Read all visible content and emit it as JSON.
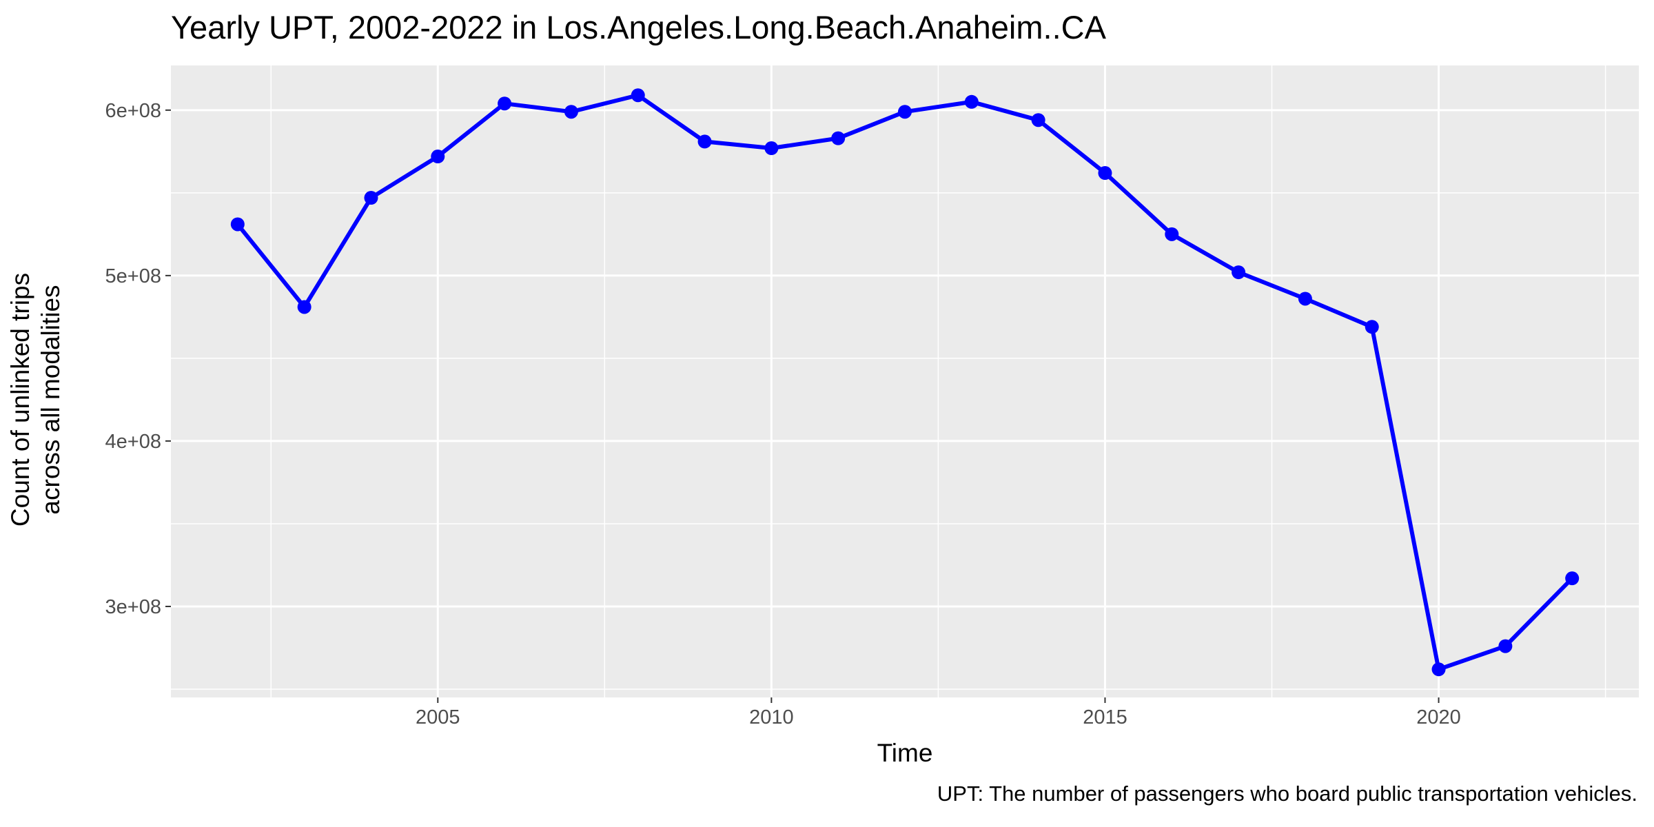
{
  "chart_data": {
    "type": "line",
    "title": "Yearly UPT, 2002-2022 in Los.Angeles.Long.Beach.Anaheim..CA",
    "xlabel": "Time",
    "ylabel_lines": [
      "Count of unlinked trips",
      "across all modalities"
    ],
    "caption": "UPT: The number of passengers who board public transportation vehicles.",
    "x": [
      2002,
      2003,
      2004,
      2005,
      2006,
      2007,
      2008,
      2009,
      2010,
      2011,
      2012,
      2013,
      2014,
      2015,
      2016,
      2017,
      2018,
      2019,
      2020,
      2021,
      2022
    ],
    "series": [
      {
        "values": [
          531000000,
          481000000,
          547000000,
          572000000,
          604000000,
          599000000,
          609000000,
          581000000,
          577000000,
          583000000,
          599000000,
          605000000,
          594000000,
          562000000,
          525000000,
          502000000,
          486000000,
          469000000,
          262000000,
          276000000,
          317000000
        ],
        "color": "#0000ff"
      }
    ],
    "xlim": [
      2001,
      2023
    ],
    "ylim": [
      245000000,
      627000000
    ],
    "x_ticks": [
      2005,
      2010,
      2015,
      2020
    ],
    "x_tick_labels": [
      "2005",
      "2010",
      "2015",
      "2020"
    ],
    "y_ticks": [
      300000000,
      400000000,
      500000000,
      600000000
    ],
    "y_tick_labels": [
      "3e+08",
      "4e+08",
      "5e+08",
      "6e+08"
    ],
    "grid": true,
    "panel_background": "#ebebeb",
    "grid_color": "#ffffff"
  }
}
